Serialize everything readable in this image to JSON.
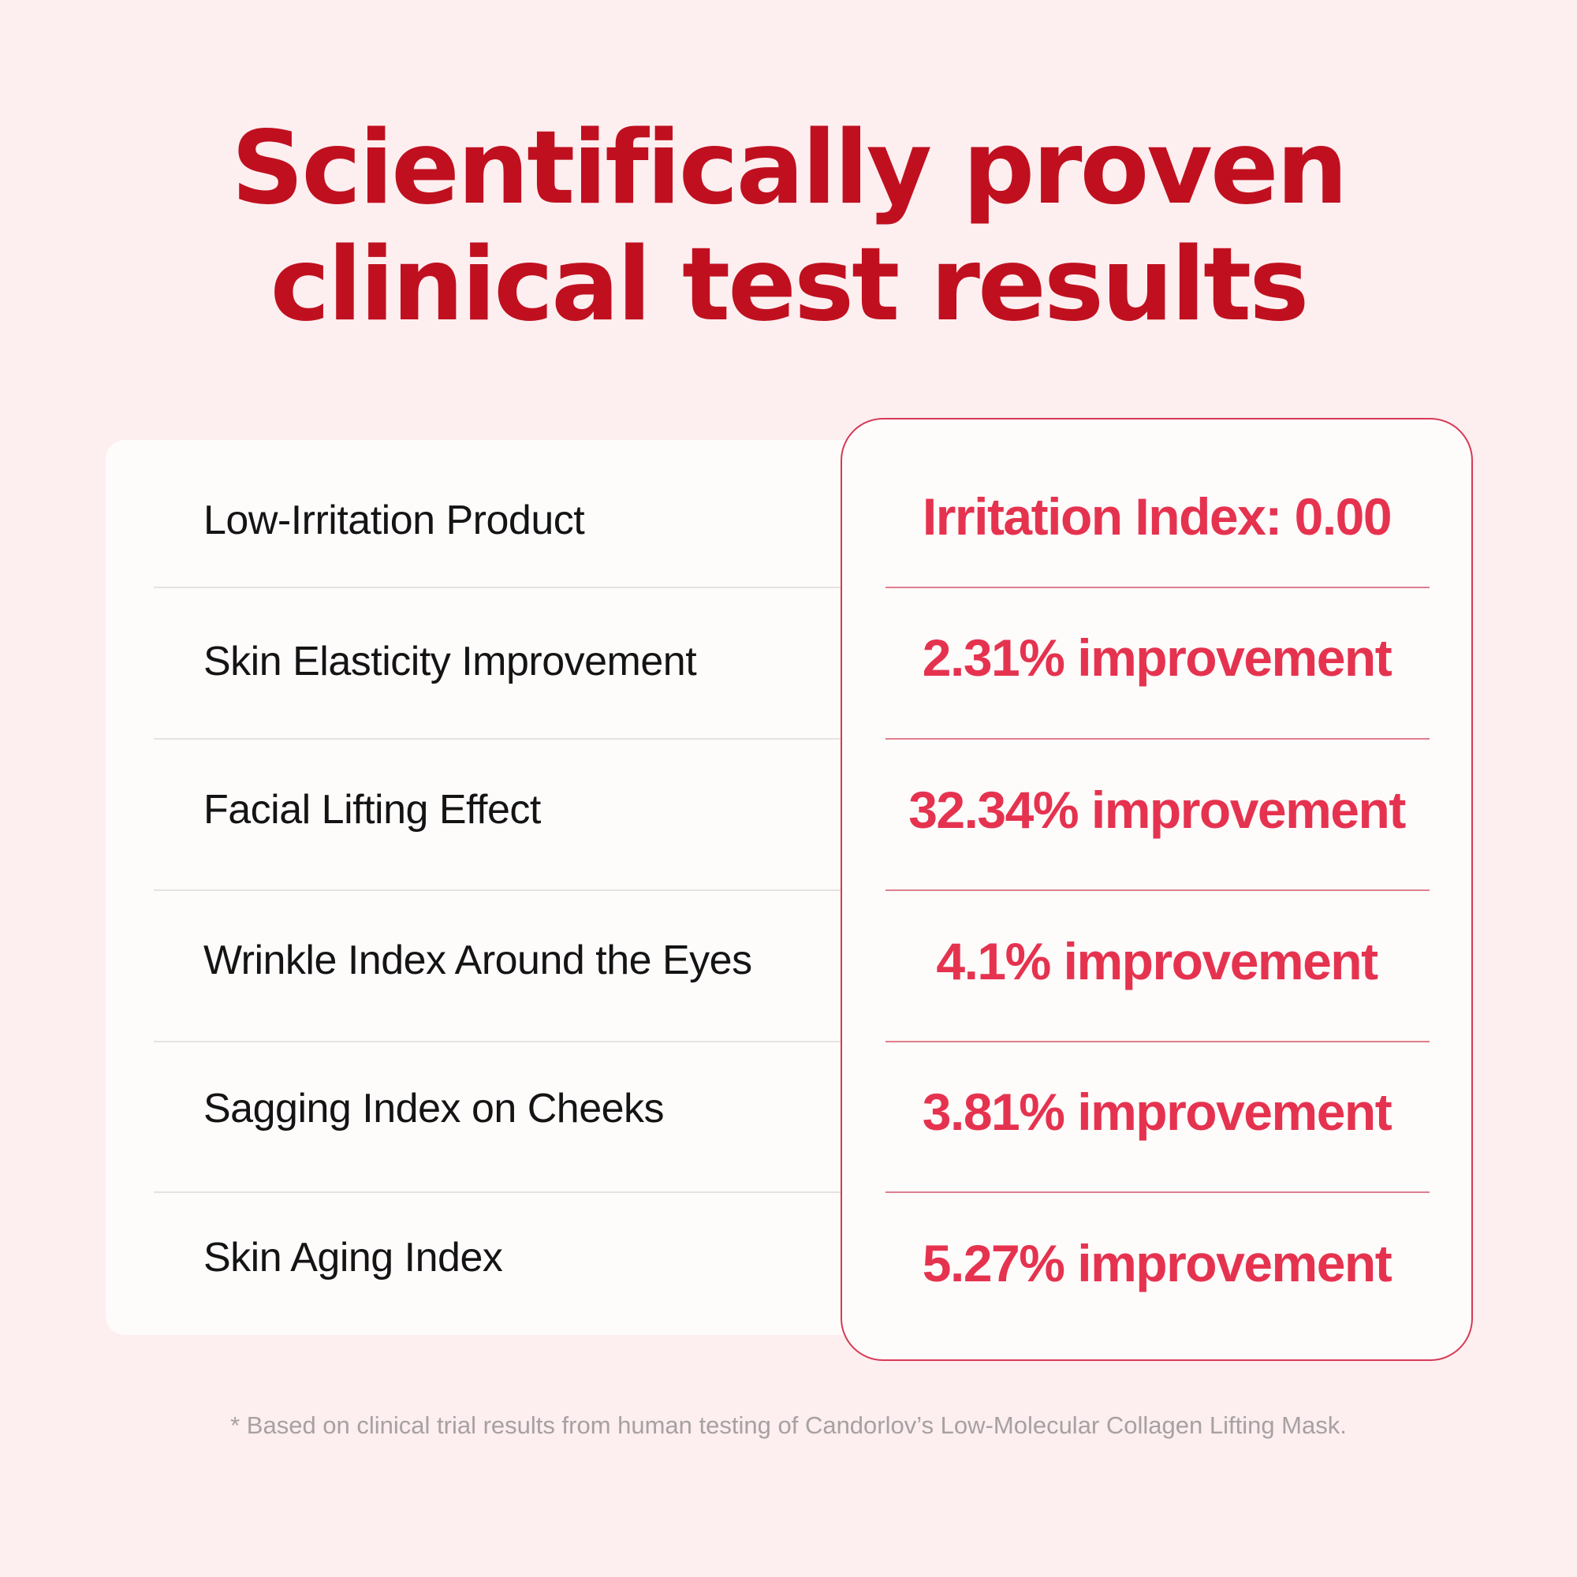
{
  "header": {
    "title_line1": "Scientifically proven",
    "title_line2": "clinical test results"
  },
  "results": [
    {
      "metric": "Low-Irritation Product",
      "result": "Irritation Index: 0.00"
    },
    {
      "metric": "Skin Elasticity Improvement",
      "result": "2.31% improvement"
    },
    {
      "metric": "Facial Lifting Effect",
      "result": "32.34% improvement"
    },
    {
      "metric": "Wrinkle Index Around the Eyes",
      "result": "4.1% improvement"
    },
    {
      "metric": "Sagging Index on Cheeks",
      "result": "3.81% improvement"
    },
    {
      "metric": "Skin Aging Index",
      "result": "5.27% improvement"
    }
  ],
  "footnote": "*  Based on clinical trial results from human testing of Candorlov’s Low-Molecular Collagen Lifting Mask.",
  "colors": {
    "background": "#fdeef0",
    "title": "#c0101f",
    "accent": "#e5334f",
    "card_border": "#d63a55"
  }
}
